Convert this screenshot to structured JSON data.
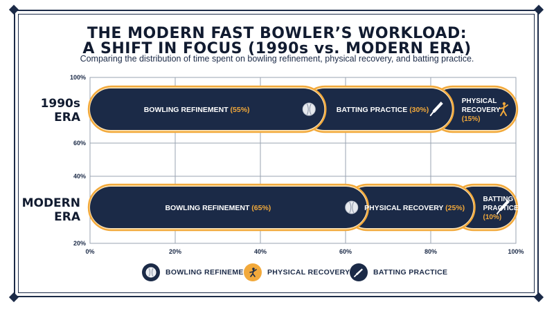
{
  "title_line1": "THE MODERN FAST BOWLER’S WORKLOAD:",
  "title_line2": "A SHIFT IN FOCUS (1990s vs. MODERN ERA)",
  "subtitle": "Comparing the distribution of time spent on bowling refinement, physical recovery, and batting practice.",
  "row_labels": {
    "era_1990s_line1": "1990s",
    "era_1990s_line2": "ERA",
    "modern_line1": "MODERN",
    "modern_line2": "ERA"
  },
  "colors": {
    "navy": "#1b2a47",
    "accent": "#f2a93b",
    "pale_accent": "#fde4b8",
    "text_on_bar": "#ffffff"
  },
  "chart_data": {
    "type": "bar",
    "orientation": "horizontal",
    "stacked": true,
    "categories": [
      "1990s ERA",
      "MODERN ERA"
    ],
    "x_ticks": [
      "0%",
      "20%",
      "40%",
      "60%",
      "80%",
      "100%"
    ],
    "y_ticks": [
      "100%",
      "60%",
      "40%",
      "20%"
    ],
    "xlim": [
      0,
      100
    ],
    "grid": true,
    "legend_position": "bottom",
    "bars": [
      {
        "category": "1990s ERA",
        "segments": [
          {
            "name": "Bowling Refinement",
            "value": 55,
            "label_lines": [
              "BOWLING REFINEMENT",
              "(55%)"
            ],
            "icon": "cricket-ball-icon"
          },
          {
            "name": "Batting Practice",
            "value": 30,
            "label_lines": [
              "BATTING PRACTICE",
              "(30%)"
            ],
            "icon": "cricket-bat-icon"
          },
          {
            "name": "Physical Recovery",
            "value": 15,
            "label_lines": [
              "PHYSICAL",
              "RECOVERY",
              "(15%)"
            ],
            "icon": "stretching-figure-icon"
          }
        ]
      },
      {
        "category": "MODERN ERA",
        "segments": [
          {
            "name": "Bowling Refinement",
            "value": 65,
            "label_lines": [
              "BOWLING REFINEMENT",
              "(65%)"
            ],
            "icon": "cricket-ball-icon"
          },
          {
            "name": "Physical Recovery",
            "value": 25,
            "label_lines": [
              "PHYSICAL RECOVERY",
              "(25%)"
            ],
            "icon": ""
          },
          {
            "name": "Batting Practice",
            "value": 10,
            "label_lines": [
              "BATTING",
              "PRACTICE",
              "(10%)"
            ],
            "icon": "cricket-bat-icon"
          }
        ]
      }
    ],
    "legend": [
      {
        "label": "BOWLING REFINEMENT",
        "icon": "cricket-ball-icon"
      },
      {
        "label": "PHYSICAL RECOVERY",
        "icon": "stretching-figure-icon"
      },
      {
        "label": "BATTING PRACTICE",
        "icon": "cricket-bat-icon"
      }
    ]
  }
}
